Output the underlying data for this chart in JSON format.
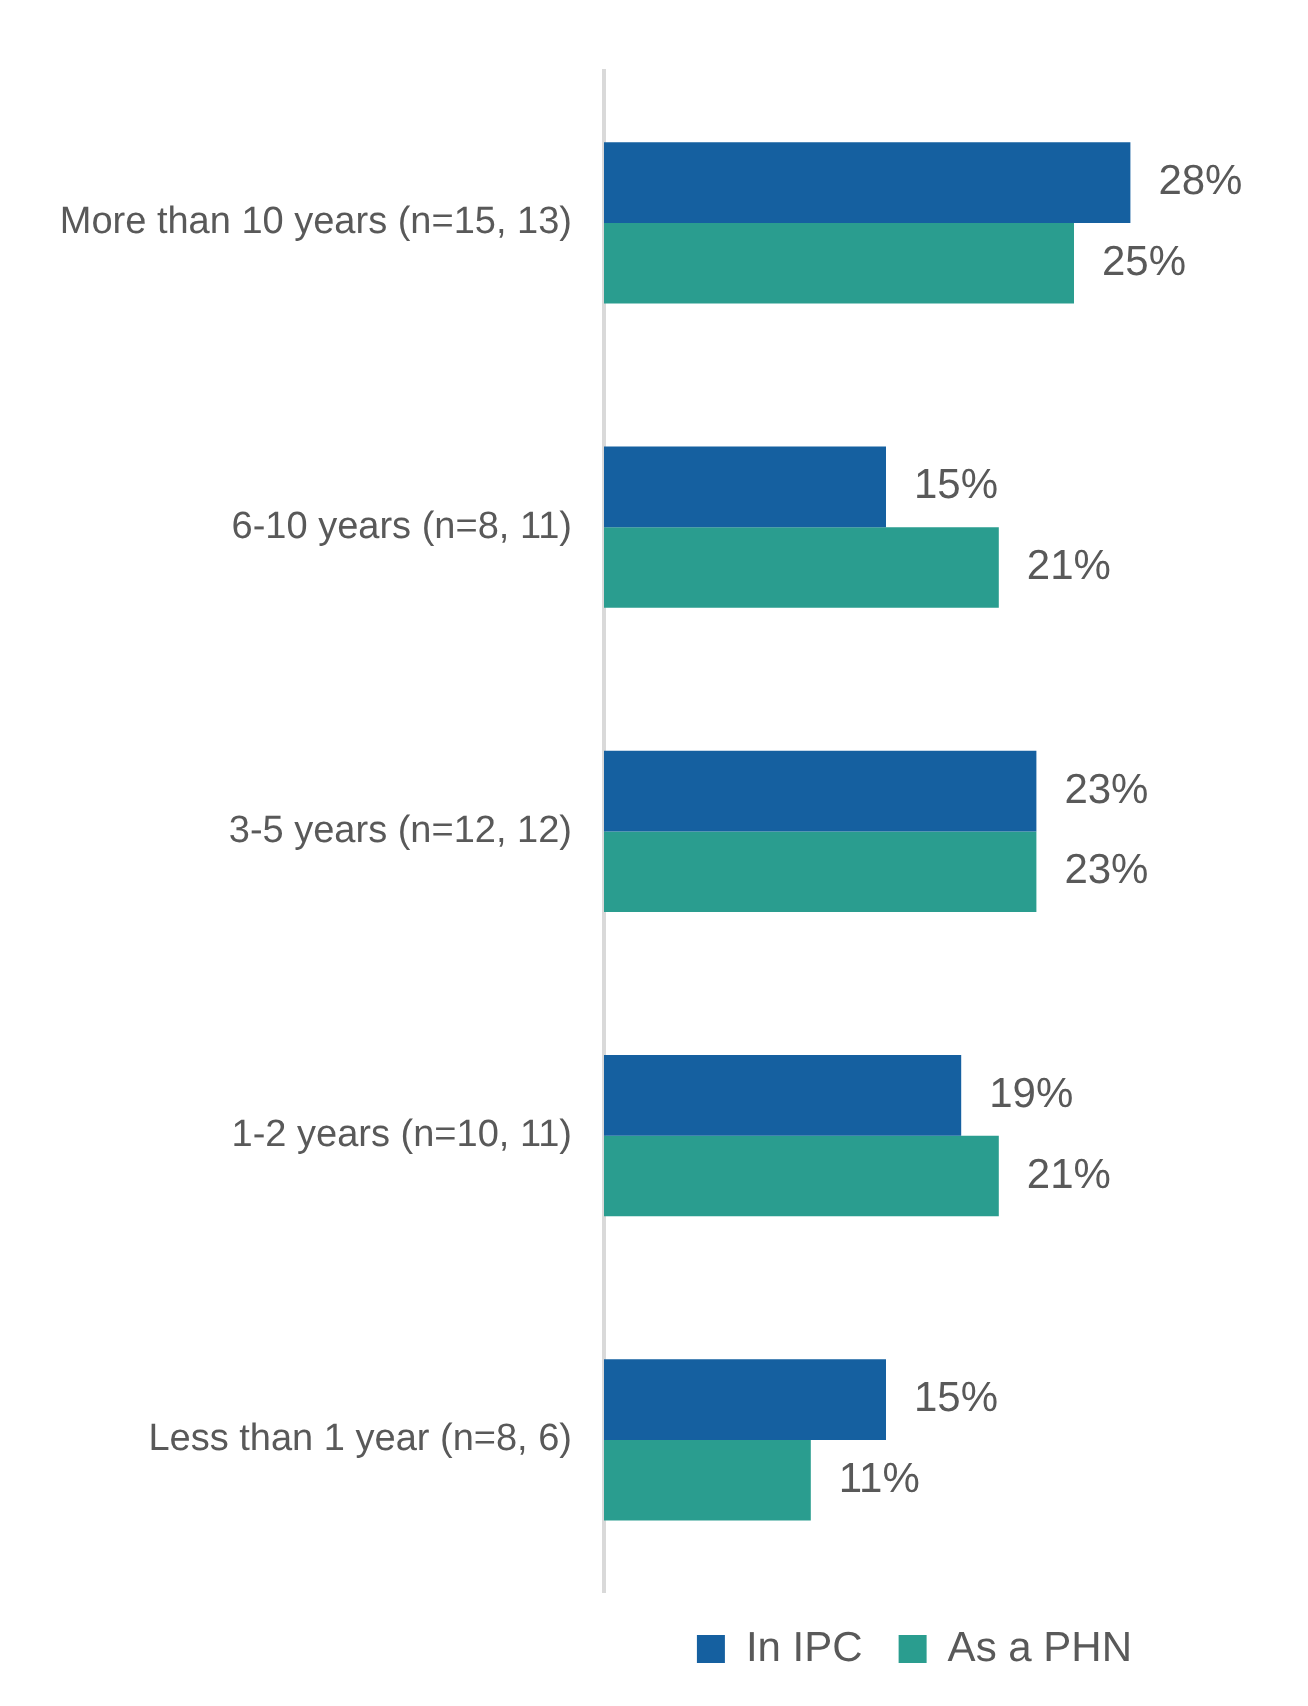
{
  "chart_data": {
    "type": "bar",
    "orientation": "horizontal",
    "categories": [
      "More than 10 years (n=15, 13)",
      "6-10 years (n=8, 11)",
      "3-5 years (n=12, 12)",
      "1-2 years (n=10, 11)",
      "Less than 1 year (n=8, 6)"
    ],
    "series": [
      {
        "name": "In IPC",
        "color": "#1560a0",
        "values": [
          28,
          15,
          23,
          19,
          15
        ],
        "value_labels": [
          "28%",
          "15%",
          "23%",
          "19%",
          "15%"
        ]
      },
      {
        "name": "As a PHN",
        "color": "#2a9d8f",
        "values": [
          25,
          21,
          23,
          21,
          11
        ],
        "value_labels": [
          "25%",
          "21%",
          "23%",
          "21%",
          "11%"
        ]
      }
    ],
    "legend": "bottom right",
    "grid": false
  }
}
